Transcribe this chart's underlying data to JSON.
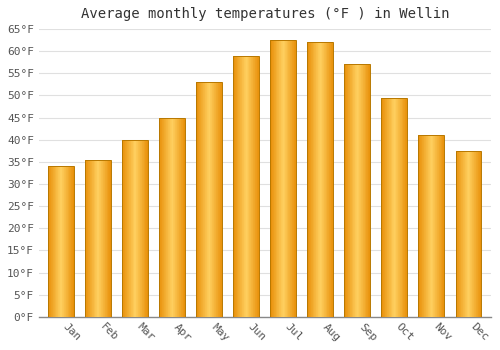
{
  "title": "Average monthly temperatures (°F ) in Wellin",
  "months": [
    "Jan",
    "Feb",
    "Mar",
    "Apr",
    "May",
    "Jun",
    "Jul",
    "Aug",
    "Sep",
    "Oct",
    "Nov",
    "Dec"
  ],
  "values": [
    34.0,
    35.5,
    40.0,
    45.0,
    53.0,
    59.0,
    62.5,
    62.0,
    57.0,
    49.5,
    41.0,
    37.5
  ],
  "bar_color_edge": "#E8900A",
  "bar_color_center": "#FFD060",
  "bar_color_main": "#FFA500",
  "ylim": [
    0,
    65
  ],
  "yticks": [
    0,
    5,
    10,
    15,
    20,
    25,
    30,
    35,
    40,
    45,
    50,
    55,
    60,
    65
  ],
  "background_color": "#ffffff",
  "plot_bg_color": "#ffffff",
  "grid_color": "#e0e0e0",
  "title_fontsize": 10,
  "tick_fontsize": 8,
  "font_family": "monospace",
  "tick_color": "#555555",
  "title_color": "#333333",
  "bar_width": 0.7
}
